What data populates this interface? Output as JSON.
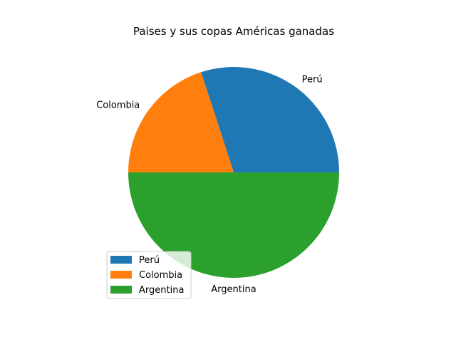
{
  "chart_data": {
    "type": "pie",
    "title": "Paises y sus copas Américas ganadas",
    "labels": [
      "Perú",
      "Colombia",
      "Argentina"
    ],
    "values": [
      2,
      1.333,
      3.333
    ],
    "percentages": [
      30,
      20,
      50
    ],
    "colors": [
      "#1f77b4",
      "#ff7f0e",
      "#2ca02c"
    ],
    "start_angle_deg": 0,
    "direction": "counterclockwise",
    "legend": {
      "placement": "lower-left",
      "entries": [
        "Perú",
        "Colombia",
        "Argentina"
      ]
    }
  }
}
